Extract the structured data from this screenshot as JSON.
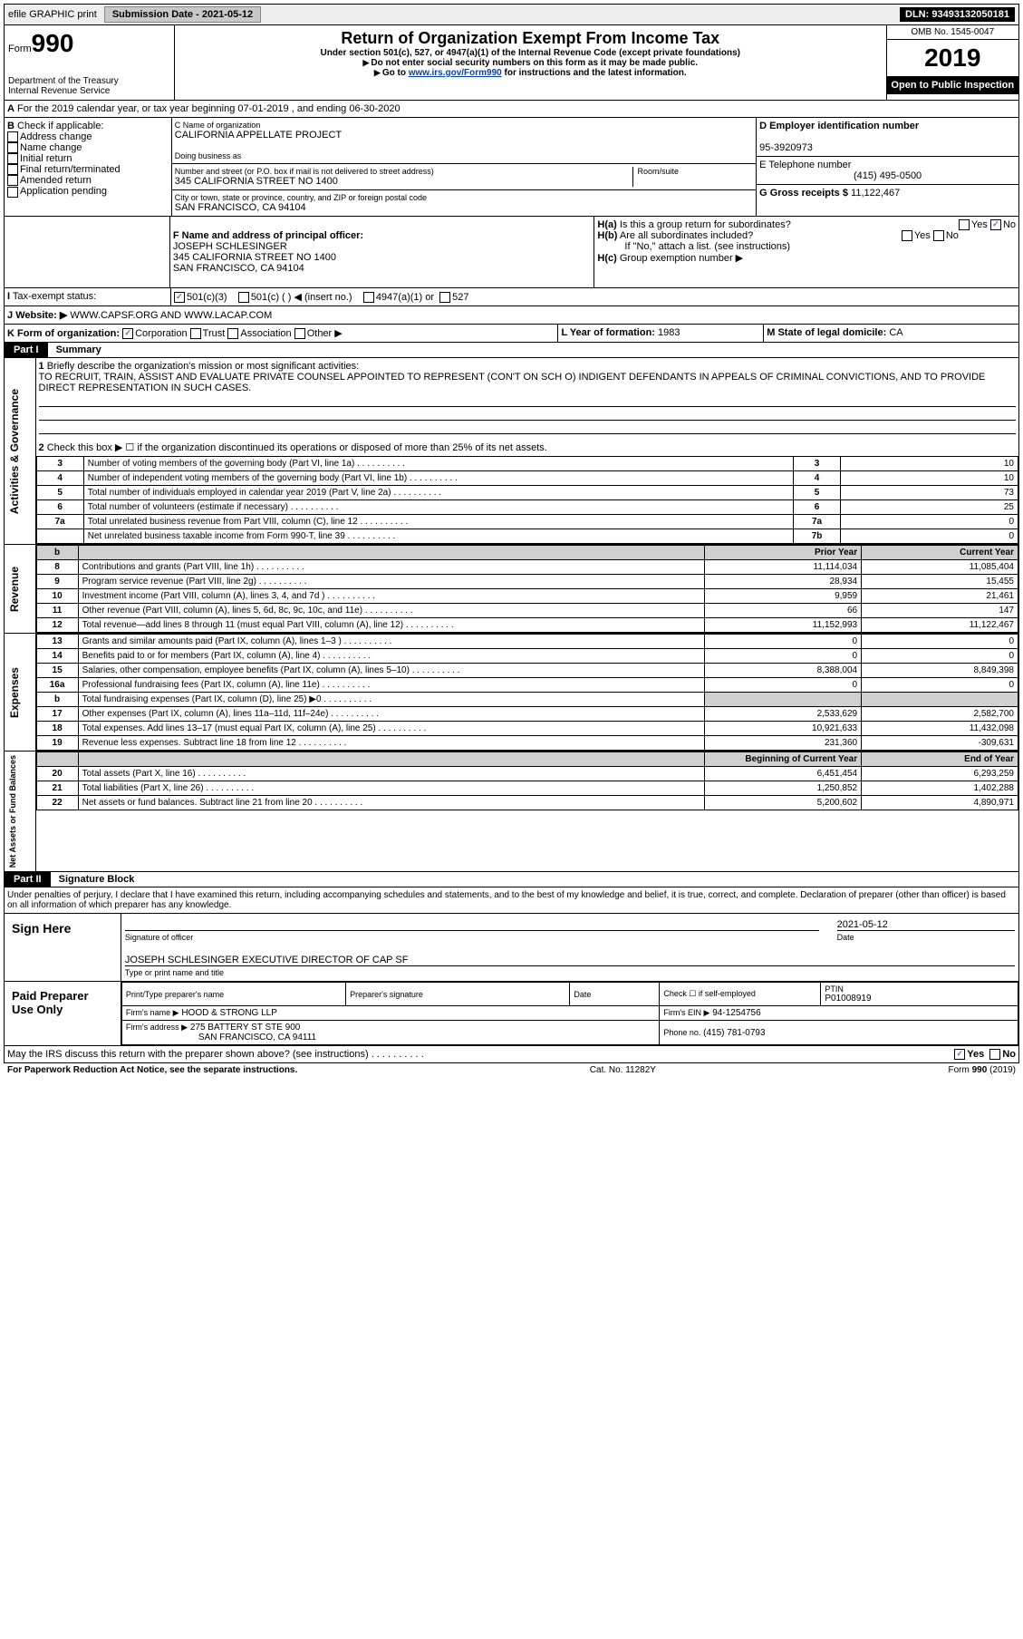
{
  "topbar": {
    "efile": "efile GRAPHIC print",
    "submission_label": "Submission Date - 2021-05-12",
    "dln": "DLN: 93493132050181"
  },
  "header": {
    "form_word": "Form",
    "form_num": "990",
    "dept": "Department of the Treasury\nInternal Revenue Service",
    "title": "Return of Organization Exempt From Income Tax",
    "subtitle": "Under section 501(c), 527, or 4947(a)(1) of the Internal Revenue Code (except private foundations)",
    "note1": "Do not enter social security numbers on this form as it may be made public.",
    "note2_pre": "Go to ",
    "note2_link": "www.irs.gov/Form990",
    "note2_post": " for instructions and the latest information.",
    "omb": "OMB No. 1545-0047",
    "year": "2019",
    "open": "Open to Public Inspection"
  },
  "periodA": "For the 2019 calendar year, or tax year beginning 07-01-2019    , and ending 06-30-2020",
  "boxB": {
    "label": "Check if applicable:",
    "opts": [
      "Address change",
      "Name change",
      "Initial return",
      "Final return/terminated",
      "Amended return",
      "Application pending"
    ]
  },
  "boxC": {
    "name_lbl": "C Name of organization",
    "name": "CALIFORNIA APPELLATE PROJECT",
    "dba_lbl": "Doing business as",
    "addr_lbl": "Number and street (or P.O. box if mail is not delivered to street address)",
    "room_lbl": "Room/suite",
    "addr": "345 CALIFORNIA STREET NO 1400",
    "city_lbl": "City or town, state or province, country, and ZIP or foreign postal code",
    "city": "SAN FRANCISCO, CA  94104"
  },
  "boxD": {
    "lbl": "D Employer identification number",
    "val": "95-3920973"
  },
  "boxE": {
    "lbl": "E Telephone number",
    "val": "(415) 495-0500"
  },
  "boxG": {
    "lbl": "G Gross receipts $",
    "val": "11,122,467"
  },
  "boxF": {
    "lbl": "F  Name and address of principal officer:",
    "val": "JOSEPH SCHLESINGER\n345 CALIFORNIA STREET NO 1400\nSAN FRANCISCO, CA  94104"
  },
  "boxH": {
    "a_lbl": "Is this a group return for subordinates?",
    "b_lbl": "Are all subordinates included?",
    "b_note": "If \"No,\" attach a list. (see instructions)",
    "c_lbl": "Group exemption number ▶"
  },
  "taxexempt": {
    "lbl": "Tax-exempt status:",
    "v501c3": "501(c)(3)",
    "v501c": "501(c) (   ) ◀ (insert no.)",
    "v4947": "4947(a)(1) or",
    "v527": "527"
  },
  "boxJ": {
    "lbl": "Website: ▶",
    "val": "WWW.CAPSF.ORG AND WWW.LACAP.COM"
  },
  "boxK": {
    "lbl": "K Form of organization:",
    "corp": "Corporation",
    "trust": "Trust",
    "assoc": "Association",
    "other": "Other ▶"
  },
  "boxL": {
    "lbl": "L Year of formation:",
    "val": "1983"
  },
  "boxM": {
    "lbl": "M State of legal domicile:",
    "val": "CA"
  },
  "part1": {
    "title": "Part I",
    "name": "Summary",
    "line1_lbl": "Briefly describe the organization's mission or most significant activities:",
    "line1_val": "TO RECRUIT, TRAIN, ASSIST AND EVALUATE PRIVATE COUNSEL APPOINTED TO REPRESENT (CON'T ON SCH O) INDIGENT DEFENDANTS IN APPEALS OF CRIMINAL CONVICTIONS, AND TO PROVIDE DIRECT REPRESENTATION IN SUCH CASES.",
    "line2": "Check this box ▶ ☐  if the organization discontinued its operations or disposed of more than 25% of its net assets.",
    "sidebar_gov": "Activities & Governance",
    "sidebar_rev": "Revenue",
    "sidebar_exp": "Expenses",
    "sidebar_net": "Net Assets or Fund Balances",
    "prior": "Prior Year",
    "current": "Current Year",
    "begin": "Beginning of Current Year",
    "end": "End of Year",
    "gov_rows": [
      {
        "n": "3",
        "lbl": "Number of voting members of the governing body (Part VI, line 1a)",
        "box": "3",
        "val": "10"
      },
      {
        "n": "4",
        "lbl": "Number of independent voting members of the governing body (Part VI, line 1b)",
        "box": "4",
        "val": "10"
      },
      {
        "n": "5",
        "lbl": "Total number of individuals employed in calendar year 2019 (Part V, line 2a)",
        "box": "5",
        "val": "73"
      },
      {
        "n": "6",
        "lbl": "Total number of volunteers (estimate if necessary)",
        "box": "6",
        "val": "25"
      },
      {
        "n": "7a",
        "lbl": "Total unrelated business revenue from Part VIII, column (C), line 12",
        "box": "7a",
        "val": "0"
      },
      {
        "n": "",
        "lbl": "Net unrelated business taxable income from Form 990-T, line 39",
        "box": "7b",
        "val": "0"
      }
    ],
    "rev_rows": [
      {
        "n": "8",
        "lbl": "Contributions and grants (Part VIII, line 1h)",
        "py": "11,114,034",
        "cy": "11,085,404"
      },
      {
        "n": "9",
        "lbl": "Program service revenue (Part VIII, line 2g)",
        "py": "28,934",
        "cy": "15,455"
      },
      {
        "n": "10",
        "lbl": "Investment income (Part VIII, column (A), lines 3, 4, and 7d )",
        "py": "9,959",
        "cy": "21,461"
      },
      {
        "n": "11",
        "lbl": "Other revenue (Part VIII, column (A), lines 5, 6d, 8c, 9c, 10c, and 11e)",
        "py": "66",
        "cy": "147"
      },
      {
        "n": "12",
        "lbl": "Total revenue—add lines 8 through 11 (must equal Part VIII, column (A), line 12)",
        "py": "11,152,993",
        "cy": "11,122,467"
      }
    ],
    "exp_rows": [
      {
        "n": "13",
        "lbl": "Grants and similar amounts paid (Part IX, column (A), lines 1–3 )",
        "py": "0",
        "cy": "0"
      },
      {
        "n": "14",
        "lbl": "Benefits paid to or for members (Part IX, column (A), line 4)",
        "py": "0",
        "cy": "0"
      },
      {
        "n": "15",
        "lbl": "Salaries, other compensation, employee benefits (Part IX, column (A), lines 5–10)",
        "py": "8,388,004",
        "cy": "8,849,398"
      },
      {
        "n": "16a",
        "lbl": "Professional fundraising fees (Part IX, column (A), line 11e)",
        "py": "0",
        "cy": "0"
      },
      {
        "n": "b",
        "lbl": "Total fundraising expenses (Part IX, column (D), line 25) ▶0",
        "py": "",
        "cy": "",
        "shade": true
      },
      {
        "n": "17",
        "lbl": "Other expenses (Part IX, column (A), lines 11a–11d, 11f–24e)",
        "py": "2,533,629",
        "cy": "2,582,700"
      },
      {
        "n": "18",
        "lbl": "Total expenses. Add lines 13–17 (must equal Part IX, column (A), line 25)",
        "py": "10,921,633",
        "cy": "11,432,098"
      },
      {
        "n": "19",
        "lbl": "Revenue less expenses. Subtract line 18 from line 12",
        "py": "231,360",
        "cy": "-309,631"
      }
    ],
    "net_rows": [
      {
        "n": "20",
        "lbl": "Total assets (Part X, line 16)",
        "py": "6,451,454",
        "cy": "6,293,259"
      },
      {
        "n": "21",
        "lbl": "Total liabilities (Part X, line 26)",
        "py": "1,250,852",
        "cy": "1,402,288"
      },
      {
        "n": "22",
        "lbl": "Net assets or fund balances. Subtract line 21 from line 20",
        "py": "5,200,602",
        "cy": "4,890,971"
      }
    ]
  },
  "part2": {
    "title": "Part II",
    "name": "Signature Block",
    "perjury": "Under penalties of perjury, I declare that I have examined this return, including accompanying schedules and statements, and to the best of my knowledge and belief, it is true, correct, and complete. Declaration of preparer (other than officer) is based on all information of which preparer has any knowledge.",
    "sign_here": "Sign Here",
    "sig_officer": "Signature of officer",
    "sig_date_lbl": "Date",
    "sig_date": "2021-05-12",
    "sig_name": "JOSEPH SCHLESINGER  EXECUTIVE DIRECTOR OF CAP SF",
    "sig_name_lbl": "Type or print name and title",
    "paid_prep": "Paid Preparer Use Only",
    "prep_name_lbl": "Print/Type preparer's name",
    "prep_sig_lbl": "Preparer's signature",
    "date_lbl": "Date",
    "check_self": "Check ☐ if self-employed",
    "ptin_lbl": "PTIN",
    "ptin": "P01008919",
    "firm_name_lbl": "Firm's name    ▶",
    "firm_name": "HOOD & STRONG LLP",
    "firm_ein_lbl": "Firm's EIN ▶",
    "firm_ein": "94-1254756",
    "firm_addr_lbl": "Firm's address ▶",
    "firm_addr1": "275 BATTERY ST STE 900",
    "firm_addr2": "SAN FRANCISCO, CA  94111",
    "phone_lbl": "Phone no.",
    "phone": "(415) 781-0793",
    "discuss": "May the IRS discuss this return with the preparer shown above? (see instructions)",
    "yes": "Yes",
    "no": "No"
  },
  "footer": {
    "left": "For Paperwork Reduction Act Notice, see the separate instructions.",
    "mid": "Cat. No. 11282Y",
    "right": "Form 990 (2019)"
  }
}
